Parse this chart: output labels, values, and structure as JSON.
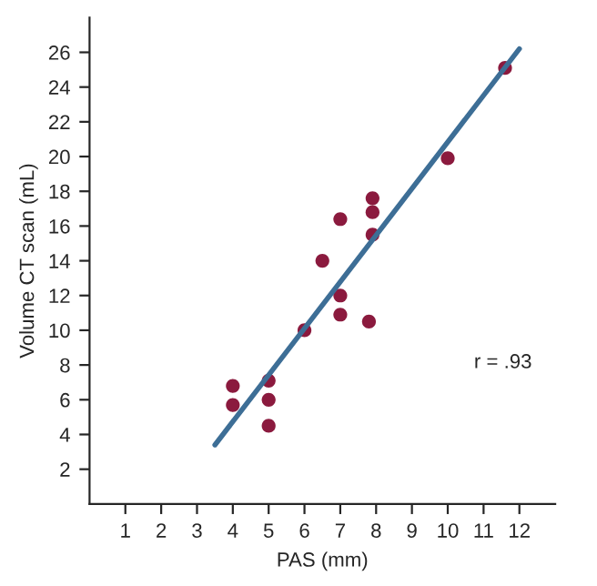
{
  "chart_data": {
    "type": "scatter",
    "xlabel": "PAS (mm)",
    "ylabel": "Volume CT scan (mL)",
    "xlim": [
      0,
      13
    ],
    "ylim": [
      0,
      28
    ],
    "xticks": [
      1,
      2,
      3,
      4,
      5,
      6,
      7,
      8,
      9,
      10,
      11,
      12
    ],
    "yticks": [
      2,
      4,
      6,
      8,
      10,
      12,
      14,
      16,
      18,
      20,
      22,
      24,
      26
    ],
    "grid": false,
    "legend": false,
    "marker": "circle",
    "series": [
      {
        "color": "#8b1a3e",
        "x": [
          4,
          4,
          5,
          5,
          5,
          6,
          7,
          7,
          7.8,
          6.5,
          7,
          7.9,
          7.9,
          7.9,
          10,
          11.6
        ],
        "values": [
          6.8,
          5.7,
          7.1,
          6,
          4.5,
          10,
          12,
          10.9,
          10.5,
          14,
          16.4,
          17.6,
          16.8,
          15.5,
          19.9,
          25.1
        ]
      },
      {
        "type": "line",
        "color": "#3d6e96",
        "x": [
          3.5,
          12
        ],
        "values": [
          3.4,
          26.2
        ],
        "line_style": "solid",
        "marker": "none"
      }
    ],
    "annotations": [
      "r = .93"
    ]
  }
}
